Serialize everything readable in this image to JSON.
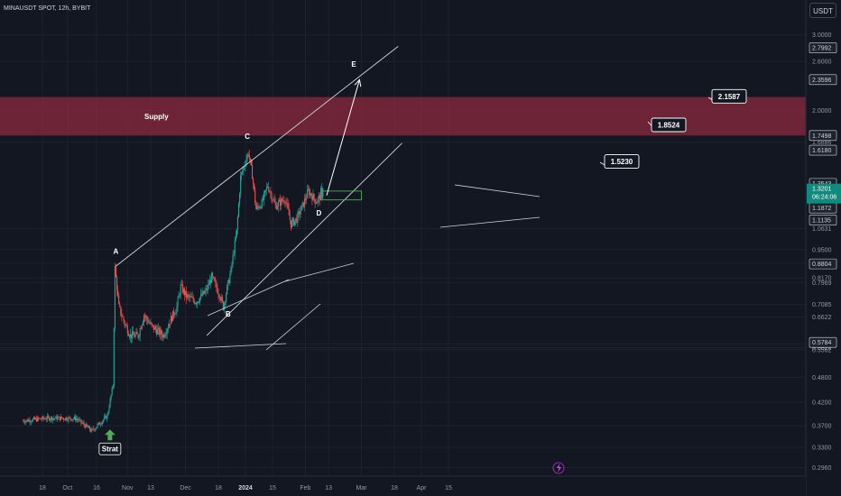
{
  "header": {
    "symbol": "MINAUSDT SPOT, 12h, BYBIT",
    "currency": "USDT"
  },
  "colors": {
    "background": "#131722",
    "up": "#26a69a",
    "down": "#ef5350",
    "supply_zone": "#8b2a3d",
    "channel": "#d1d4dc",
    "box": "#4caf50",
    "arrow_green": "#4caf50"
  },
  "chart_data": {
    "type": "candlestick",
    "symbol": "MINAUSDT",
    "timeframe": "12h",
    "exchange": "BYBIT",
    "y_scale": "log",
    "ylim": [
      0.28,
      3.25
    ],
    "x_tick_labels": [
      "18",
      "Oct",
      "16",
      "Nov",
      "13",
      "Dec",
      "18",
      "2024",
      "15",
      "Feb",
      "13",
      "Mar",
      "18",
      "Apr",
      "15"
    ],
    "x_tick_bold": [
      "2024"
    ],
    "y_tick_labels": [
      "3.0000",
      "2.6000",
      "2.0000",
      "1.6886",
      "1.0631",
      "0.9500",
      "0.8828",
      "0.8170",
      "0.7969",
      "0.7085",
      "0.6622",
      "0.5743",
      "0.5622",
      "0.5562",
      "0.4800",
      "0.4200",
      "0.3700",
      "0.3300",
      "0.2960"
    ],
    "price_labels": [
      {
        "text": "2.7992",
        "value": 2.7992
      },
      {
        "text": "2.3596",
        "value": 2.3596
      },
      {
        "text": "1.7498",
        "value": 1.7498
      },
      {
        "text": "1.6180",
        "value": 1.618
      },
      {
        "text": "1.3543",
        "value": 1.3543
      },
      {
        "text": "1.2612",
        "value": 1.2612
      },
      {
        "text": "1.1872",
        "value": 1.1872
      },
      {
        "text": "1.1135",
        "value": 1.1135
      },
      {
        "text": "0.8804",
        "value": 0.8804
      },
      {
        "text": "0.5784",
        "value": 0.5784
      }
    ],
    "current_price": {
      "value": 1.3201,
      "label": "1.3201",
      "countdown": "06:24:06"
    },
    "price_path": [
      {
        "t": "2023-09-08",
        "p": 0.38
      },
      {
        "t": "2023-09-22",
        "p": 0.386
      },
      {
        "t": "2023-10-06",
        "p": 0.385
      },
      {
        "t": "2023-10-14",
        "p": 0.36
      },
      {
        "t": "2023-10-22",
        "p": 0.39
      },
      {
        "t": "2023-10-25",
        "p": 0.46
      },
      {
        "t": "2023-10-26",
        "p": 0.86
      },
      {
        "t": "2023-10-28",
        "p": 0.7
      },
      {
        "t": "2023-10-31",
        "p": 0.64
      },
      {
        "t": "2023-11-03",
        "p": 0.6
      },
      {
        "t": "2023-11-07",
        "p": 0.6
      },
      {
        "t": "2023-11-10",
        "p": 0.67
      },
      {
        "t": "2023-11-14",
        "p": 0.63
      },
      {
        "t": "2023-11-20",
        "p": 0.6
      },
      {
        "t": "2023-11-27",
        "p": 0.7
      },
      {
        "t": "2023-11-29",
        "p": 0.78
      },
      {
        "t": "2023-12-02",
        "p": 0.74
      },
      {
        "t": "2023-12-07",
        "p": 0.72
      },
      {
        "t": "2023-12-12",
        "p": 0.76
      },
      {
        "t": "2023-12-15",
        "p": 0.82
      },
      {
        "t": "2023-12-19",
        "p": 0.75
      },
      {
        "t": "2023-12-21",
        "p": 0.7
      },
      {
        "t": "2023-12-25",
        "p": 0.85
      },
      {
        "t": "2023-12-28",
        "p": 1.05
      },
      {
        "t": "2023-12-30",
        "p": 1.4
      },
      {
        "t": "2024-01-01",
        "p": 1.5
      },
      {
        "t": "2024-01-03",
        "p": 1.6
      },
      {
        "t": "2024-01-05",
        "p": 1.42
      },
      {
        "t": "2024-01-07",
        "p": 1.18
      },
      {
        "t": "2024-01-10",
        "p": 1.22
      },
      {
        "t": "2024-01-13",
        "p": 1.34
      },
      {
        "t": "2024-01-17",
        "p": 1.2
      },
      {
        "t": "2024-01-22",
        "p": 1.25
      },
      {
        "t": "2024-01-25",
        "p": 1.09
      },
      {
        "t": "2024-01-28",
        "p": 1.12
      },
      {
        "t": "2024-01-31",
        "p": 1.2
      },
      {
        "t": "2024-02-03",
        "p": 1.3
      },
      {
        "t": "2024-02-07",
        "p": 1.23
      },
      {
        "t": "2024-02-09",
        "p": 1.26
      },
      {
        "t": "2024-02-10",
        "p": 1.3201
      }
    ],
    "supply_zone": {
      "label": "Supply",
      "low": 1.75,
      "high": 2.15
    },
    "channel": {
      "upper": [
        {
          "t": "2023-10-26",
          "p": 0.87
        },
        {
          "t": "2024-03-20",
          "p": 2.82
        }
      ],
      "lower": [
        {
          "t": "2023-12-12",
          "p": 0.6
        },
        {
          "t": "2024-03-22",
          "p": 1.68
        }
      ]
    },
    "wave_labels": [
      {
        "text": "A",
        "t": "2023-10-26",
        "p": 0.93
      },
      {
        "text": "B",
        "t": "2023-12-23",
        "p": 0.665
      },
      {
        "text": "C",
        "t": "2024-01-02",
        "p": 1.72
      },
      {
        "text": "D",
        "t": "2024-02-08",
        "p": 1.14
      },
      {
        "text": "E",
        "t": "2024-02-26",
        "p": 2.53
      }
    ],
    "targets": [
      {
        "text": "1.5230",
        "value": 1.523
      },
      {
        "text": "1.8524",
        "value": 1.8524
      },
      {
        "text": "2.1587",
        "value": 2.1587
      }
    ],
    "projection_arrow": {
      "from": {
        "t": "2024-02-12",
        "p": 1.27
      },
      "to": {
        "t": "2024-02-29",
        "p": 2.36
      }
    },
    "entry_box": {
      "t_start": "2024-02-10",
      "t_end": "2024-03-01",
      "low": 1.24,
      "high": 1.3
    },
    "start_label": "Strat",
    "start_marker": {
      "t": "2023-10-22",
      "p": 0.37
    }
  }
}
